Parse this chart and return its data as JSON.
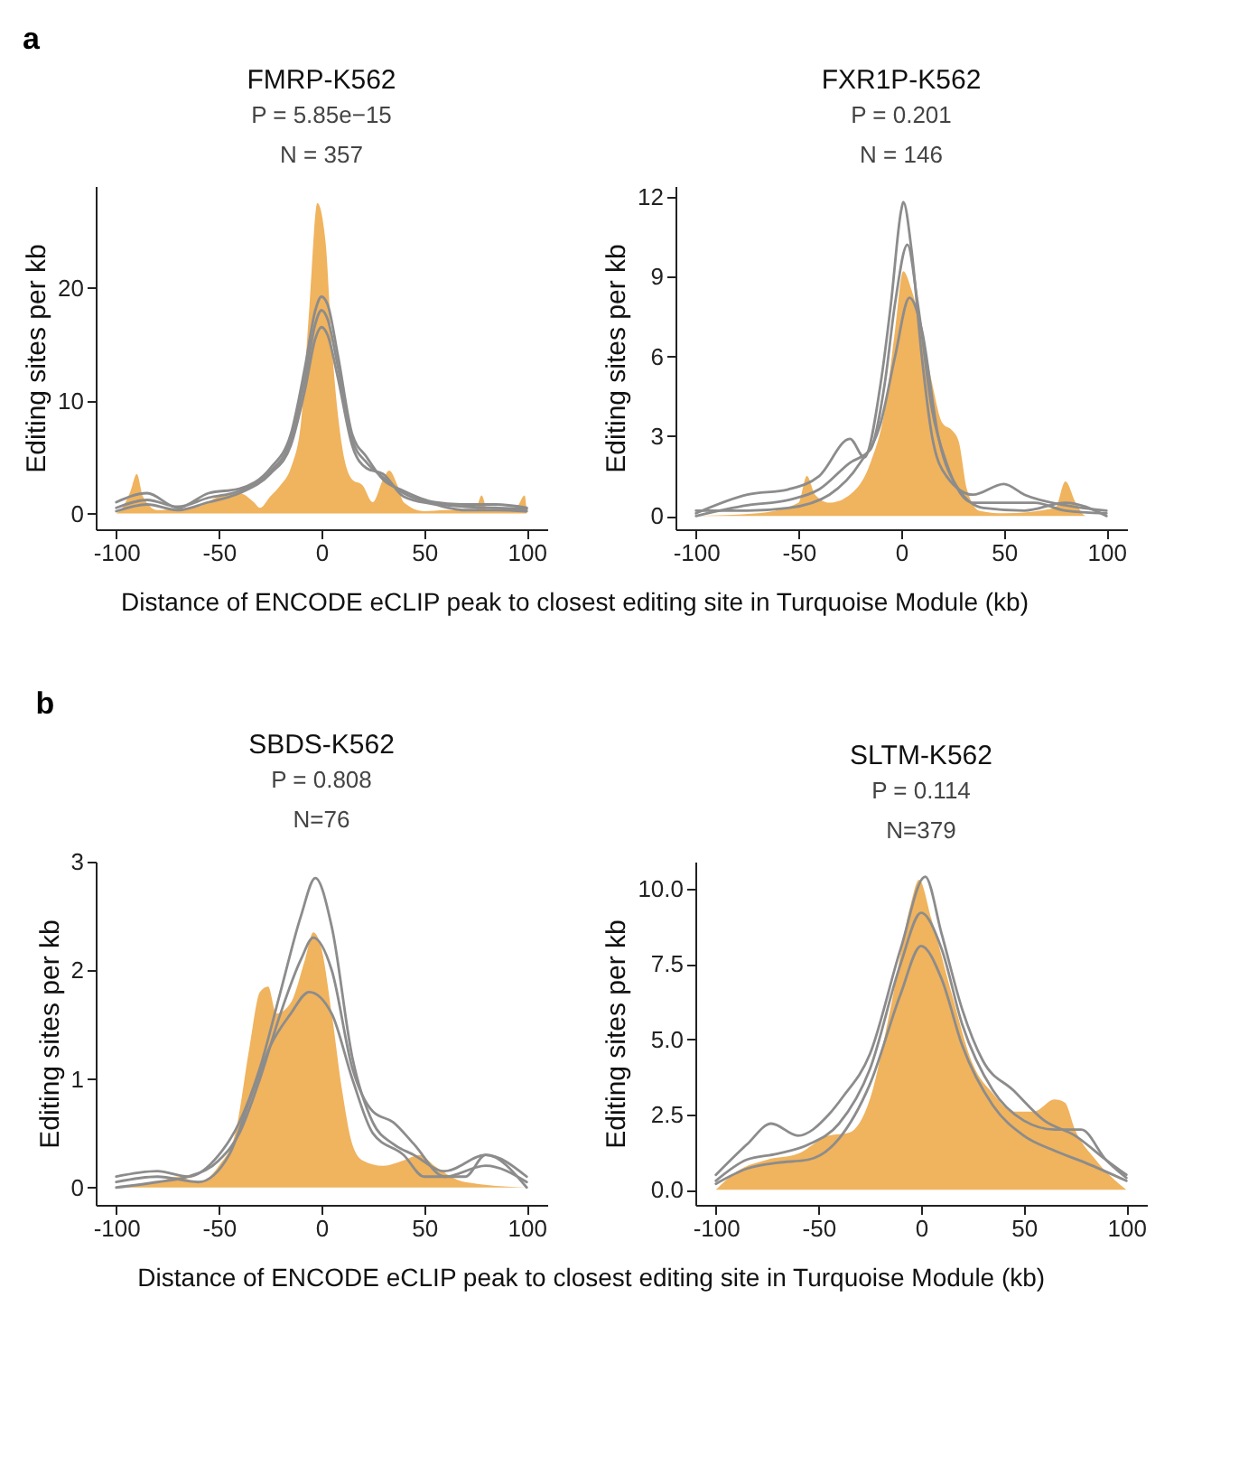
{
  "chart_data": [
    {
      "type": "area",
      "title": "FMRP-K562",
      "subtitle": "P = 5.85e−15",
      "annotations": [
        "N = 357",
        "a"
      ],
      "xlabel": "Distance of ENCODE eCLIP peak to closest editing site in Turquoise Module (kb)",
      "ylabel": "Editing sites per kb",
      "xlim": [
        -110,
        110
      ],
      "ylim": [
        -1.4,
        29
      ],
      "xticks": [
        -100,
        -50,
        0,
        50,
        100
      ],
      "yticks": [
        0,
        10,
        20
      ],
      "series": [
        {
          "type": "area",
          "color": "#f0b35e",
          "x": [
            -100,
            -97,
            -93,
            -90,
            -87,
            -80,
            -70,
            -60,
            -50,
            -40,
            -33,
            -30,
            -25,
            -20,
            -15,
            -10,
            -6,
            -2,
            2,
            5,
            10,
            15,
            20,
            25,
            30,
            33,
            37,
            40,
            50,
            60,
            75,
            78,
            81,
            90,
            95,
            99,
            100
          ],
          "values": [
            0,
            0.5,
            2,
            3.5,
            1.5,
            0.3,
            0.4,
            0.6,
            1.5,
            1.8,
            1,
            0.5,
            1.5,
            2.5,
            4,
            8,
            18,
            27.5,
            24,
            15,
            6,
            3,
            2.5,
            1,
            3,
            3.8,
            2.5,
            1,
            0.2,
            0.3,
            0.3,
            1.6,
            0.2,
            0.2,
            0.5,
            1.6,
            0
          ]
        },
        {
          "type": "line",
          "color": "#8c8c8c",
          "x": [
            -100,
            -85,
            -70,
            -55,
            -40,
            -25,
            -15,
            -8,
            -3,
            0,
            3,
            8,
            15,
            22,
            30,
            40,
            55,
            70,
            85,
            100
          ],
          "values": [
            1,
            1.8,
            0.5,
            1.8,
            2.2,
            4,
            7,
            13,
            18,
            19.2,
            18.5,
            14,
            7,
            5,
            3,
            2,
            1,
            0.8,
            0.8,
            0.5
          ]
        },
        {
          "type": "line",
          "color": "#8c8c8c",
          "x": [
            -100,
            -85,
            -70,
            -55,
            -40,
            -25,
            -15,
            -8,
            -3,
            0,
            3,
            8,
            15,
            22,
            30,
            40,
            55,
            70,
            85,
            100
          ],
          "values": [
            0.5,
            1.2,
            0.6,
            1.4,
            2,
            3.7,
            6.5,
            12,
            16.8,
            18,
            17.2,
            13,
            6.5,
            4.5,
            3.2,
            1.8,
            0.9,
            0.6,
            0.5,
            0.4
          ]
        },
        {
          "type": "line",
          "color": "#8c8c8c",
          "x": [
            -100,
            -85,
            -70,
            -55,
            -40,
            -25,
            -15,
            -8,
            -3,
            0,
            3,
            8,
            15,
            22,
            30,
            40,
            55,
            70,
            85,
            100
          ],
          "values": [
            0.2,
            0.8,
            0.3,
            1,
            1.8,
            3.5,
            6,
            11,
            15.5,
            16.5,
            15.8,
            12,
            6,
            4,
            3.5,
            1.5,
            0.8,
            0.3,
            0.3,
            0.2
          ]
        }
      ]
    },
    {
      "type": "area",
      "title": "FXR1P-K562",
      "subtitle": "P = 0.201",
      "annotations": [
        "N = 146"
      ],
      "ylabel": "Editing sites per kb",
      "xlim": [
        -110,
        110
      ],
      "ylim": [
        -0.5,
        12.4
      ],
      "xticks": [
        -100,
        -50,
        0,
        50,
        100
      ],
      "yticks": [
        0,
        3,
        6,
        9,
        12
      ],
      "series": [
        {
          "type": "area",
          "color": "#f0b35e",
          "x": [
            -100,
            -70,
            -50,
            -46,
            -42,
            -35,
            -25,
            -15,
            -8,
            -3,
            1,
            5,
            10,
            15,
            20,
            25,
            28,
            32,
            38,
            50,
            75,
            80,
            85,
            90,
            100
          ],
          "values": [
            0,
            0.1,
            0.5,
            1.5,
            0.8,
            0.5,
            0.8,
            2,
            4,
            7,
            9.2,
            8.5,
            7,
            5,
            3.5,
            3.2,
            2.8,
            1,
            0.2,
            0.1,
            0.3,
            1.3,
            0.5,
            0,
            0
          ]
        },
        {
          "type": "line",
          "color": "#8c8c8c",
          "x": [
            -100,
            -75,
            -55,
            -40,
            -25,
            -18,
            -10,
            -5,
            0,
            1,
            5,
            10,
            15,
            22,
            35,
            50,
            60,
            80,
            100
          ],
          "values": [
            0.1,
            0.8,
            1,
            1.5,
            2.9,
            2.2,
            5,
            8,
            11.5,
            11.8,
            10,
            6,
            3,
            1.5,
            0.8,
            1.2,
            0.8,
            0.4,
            0.2
          ]
        },
        {
          "type": "line",
          "color": "#8c8c8c",
          "x": [
            -100,
            -75,
            -55,
            -40,
            -25,
            -15,
            -8,
            -3,
            3,
            8,
            15,
            22,
            35,
            50,
            65,
            80,
            100
          ],
          "values": [
            0,
            0.4,
            0.6,
            1,
            2,
            2.5,
            5,
            8,
            10.2,
            8,
            4,
            2,
            0.5,
            0.5,
            0.5,
            0.2,
            0.1
          ]
        },
        {
          "type": "line",
          "color": "#8c8c8c",
          "x": [
            -100,
            -75,
            -55,
            -35,
            -20,
            -10,
            -3,
            4,
            10,
            18,
            28,
            40,
            60,
            80,
            100
          ],
          "values": [
            0.2,
            0.2,
            0.3,
            0.8,
            2,
            3.5,
            6,
            8.2,
            7,
            3,
            1,
            0.3,
            0.2,
            0.5,
            0
          ]
        }
      ]
    },
    {
      "type": "area",
      "title": "SBDS-K562",
      "subtitle": "P = 0.808",
      "annotations": [
        "N=76",
        "b"
      ],
      "xlabel": "Distance of ENCODE eCLIP peak to closest editing site in Turquoise Module (kb)",
      "ylabel": "Editing sites per kb",
      "xlim": [
        -110,
        110
      ],
      "ylim": [
        -0.16,
        3
      ],
      "xticks": [
        -100,
        -50,
        0,
        50,
        100
      ],
      "yticks": [
        0,
        1,
        2,
        3
      ],
      "series": [
        {
          "type": "area",
          "color": "#f0b35e",
          "x": [
            -100,
            -80,
            -70,
            -60,
            -50,
            -42,
            -35,
            -30,
            -26,
            -22,
            -15,
            -8,
            -4,
            0,
            5,
            10,
            15,
            20,
            30,
            40,
            48,
            55,
            70,
            100
          ],
          "values": [
            0,
            0.05,
            0.1,
            0.05,
            0.2,
            0.5,
            1.3,
            1.8,
            1.85,
            1.6,
            1.7,
            2.1,
            2.35,
            2.2,
            1.6,
            0.9,
            0.4,
            0.25,
            0.2,
            0.25,
            0.3,
            0.2,
            0.05,
            0
          ]
        },
        {
          "type": "line",
          "color": "#8c8c8c",
          "x": [
            -100,
            -80,
            -65,
            -50,
            -40,
            -30,
            -20,
            -10,
            -3,
            5,
            15,
            25,
            35,
            45,
            60,
            80,
            100
          ],
          "values": [
            0.1,
            0.15,
            0.1,
            0.3,
            0.6,
            1.1,
            1.8,
            2.5,
            2.85,
            2.4,
            1.2,
            0.6,
            0.4,
            0.3,
            0.15,
            0.3,
            0.1
          ]
        },
        {
          "type": "line",
          "color": "#8c8c8c",
          "x": [
            -100,
            -80,
            -65,
            -50,
            -40,
            -30,
            -20,
            -10,
            -4,
            5,
            15,
            25,
            35,
            45,
            60,
            80,
            100
          ],
          "values": [
            0,
            0.05,
            0.1,
            0.25,
            0.5,
            1,
            1.6,
            2.1,
            2.3,
            2,
            1.1,
            0.7,
            0.6,
            0.4,
            0.1,
            0.2,
            0.05
          ]
        },
        {
          "type": "line",
          "color": "#8c8c8c",
          "x": [
            -100,
            -80,
            -60,
            -45,
            -35,
            -25,
            -15,
            -6,
            5,
            15,
            25,
            40,
            50,
            70,
            80,
            100
          ],
          "values": [
            0.05,
            0.1,
            0.05,
            0.3,
            0.8,
            1.3,
            1.6,
            1.8,
            1.6,
            1,
            0.5,
            0.3,
            0.1,
            0.1,
            0.3,
            0
          ]
        }
      ]
    },
    {
      "type": "area",
      "title": "SLTM-K562",
      "subtitle": "P = 0.114",
      "annotations": [
        "N=379"
      ],
      "ylabel": "Editing sites per kb",
      "xlim": [
        -110,
        110
      ],
      "ylim": [
        -0.5,
        10.9
      ],
      "xticks": [
        -100,
        -50,
        0,
        50,
        100
      ],
      "yticks": [
        {
          "value": 0,
          "label": "0.0"
        },
        2.5,
        {
          "value": 5,
          "label": "5.0"
        },
        7.5,
        {
          "value": 10,
          "label": "10.0"
        }
      ],
      "series": [
        {
          "type": "area",
          "color": "#f0b35e",
          "x": [
            -100,
            -90,
            -75,
            -60,
            -45,
            -35,
            -25,
            -15,
            -5,
            -1,
            5,
            15,
            25,
            35,
            45,
            55,
            65,
            70,
            75,
            85,
            100
          ],
          "values": [
            0,
            0.6,
            1,
            1.2,
            1.8,
            1.9,
            3,
            6,
            9.5,
            10.3,
            9,
            6.5,
            4.2,
            3.2,
            2.6,
            2.6,
            3,
            2.9,
            2,
            1,
            0
          ]
        },
        {
          "type": "line",
          "color": "#8c8c8c",
          "x": [
            -100,
            -85,
            -73,
            -60,
            -45,
            -38,
            -25,
            -10,
            2,
            10,
            20,
            30,
            45,
            60,
            75,
            90,
            100
          ],
          "values": [
            0.5,
            1.5,
            2.2,
            1.8,
            2.5,
            3.1,
            4.5,
            8,
            10.4,
            8.5,
            6,
            4.3,
            3.3,
            2.3,
            1.8,
            1,
            0.5
          ]
        },
        {
          "type": "line",
          "color": "#8c8c8c",
          "x": [
            -100,
            -85,
            -70,
            -55,
            -40,
            -25,
            -10,
            0,
            10,
            20,
            35,
            50,
            65,
            78,
            90,
            100
          ],
          "values": [
            0.3,
            1,
            1.2,
            1.5,
            2.2,
            4,
            7.5,
            9.2,
            8,
            5.5,
            3.3,
            2.3,
            2,
            2,
            1,
            0.4
          ]
        },
        {
          "type": "line",
          "color": "#8c8c8c",
          "x": [
            -100,
            -85,
            -70,
            -55,
            -40,
            -25,
            -10,
            0,
            10,
            20,
            35,
            50,
            65,
            80,
            100
          ],
          "values": [
            0.2,
            0.7,
            0.9,
            1,
            1.7,
            3.5,
            6.5,
            8.1,
            7,
            4.8,
            2.8,
            1.8,
            1.3,
            0.9,
            0.3
          ]
        }
      ]
    }
  ]
}
